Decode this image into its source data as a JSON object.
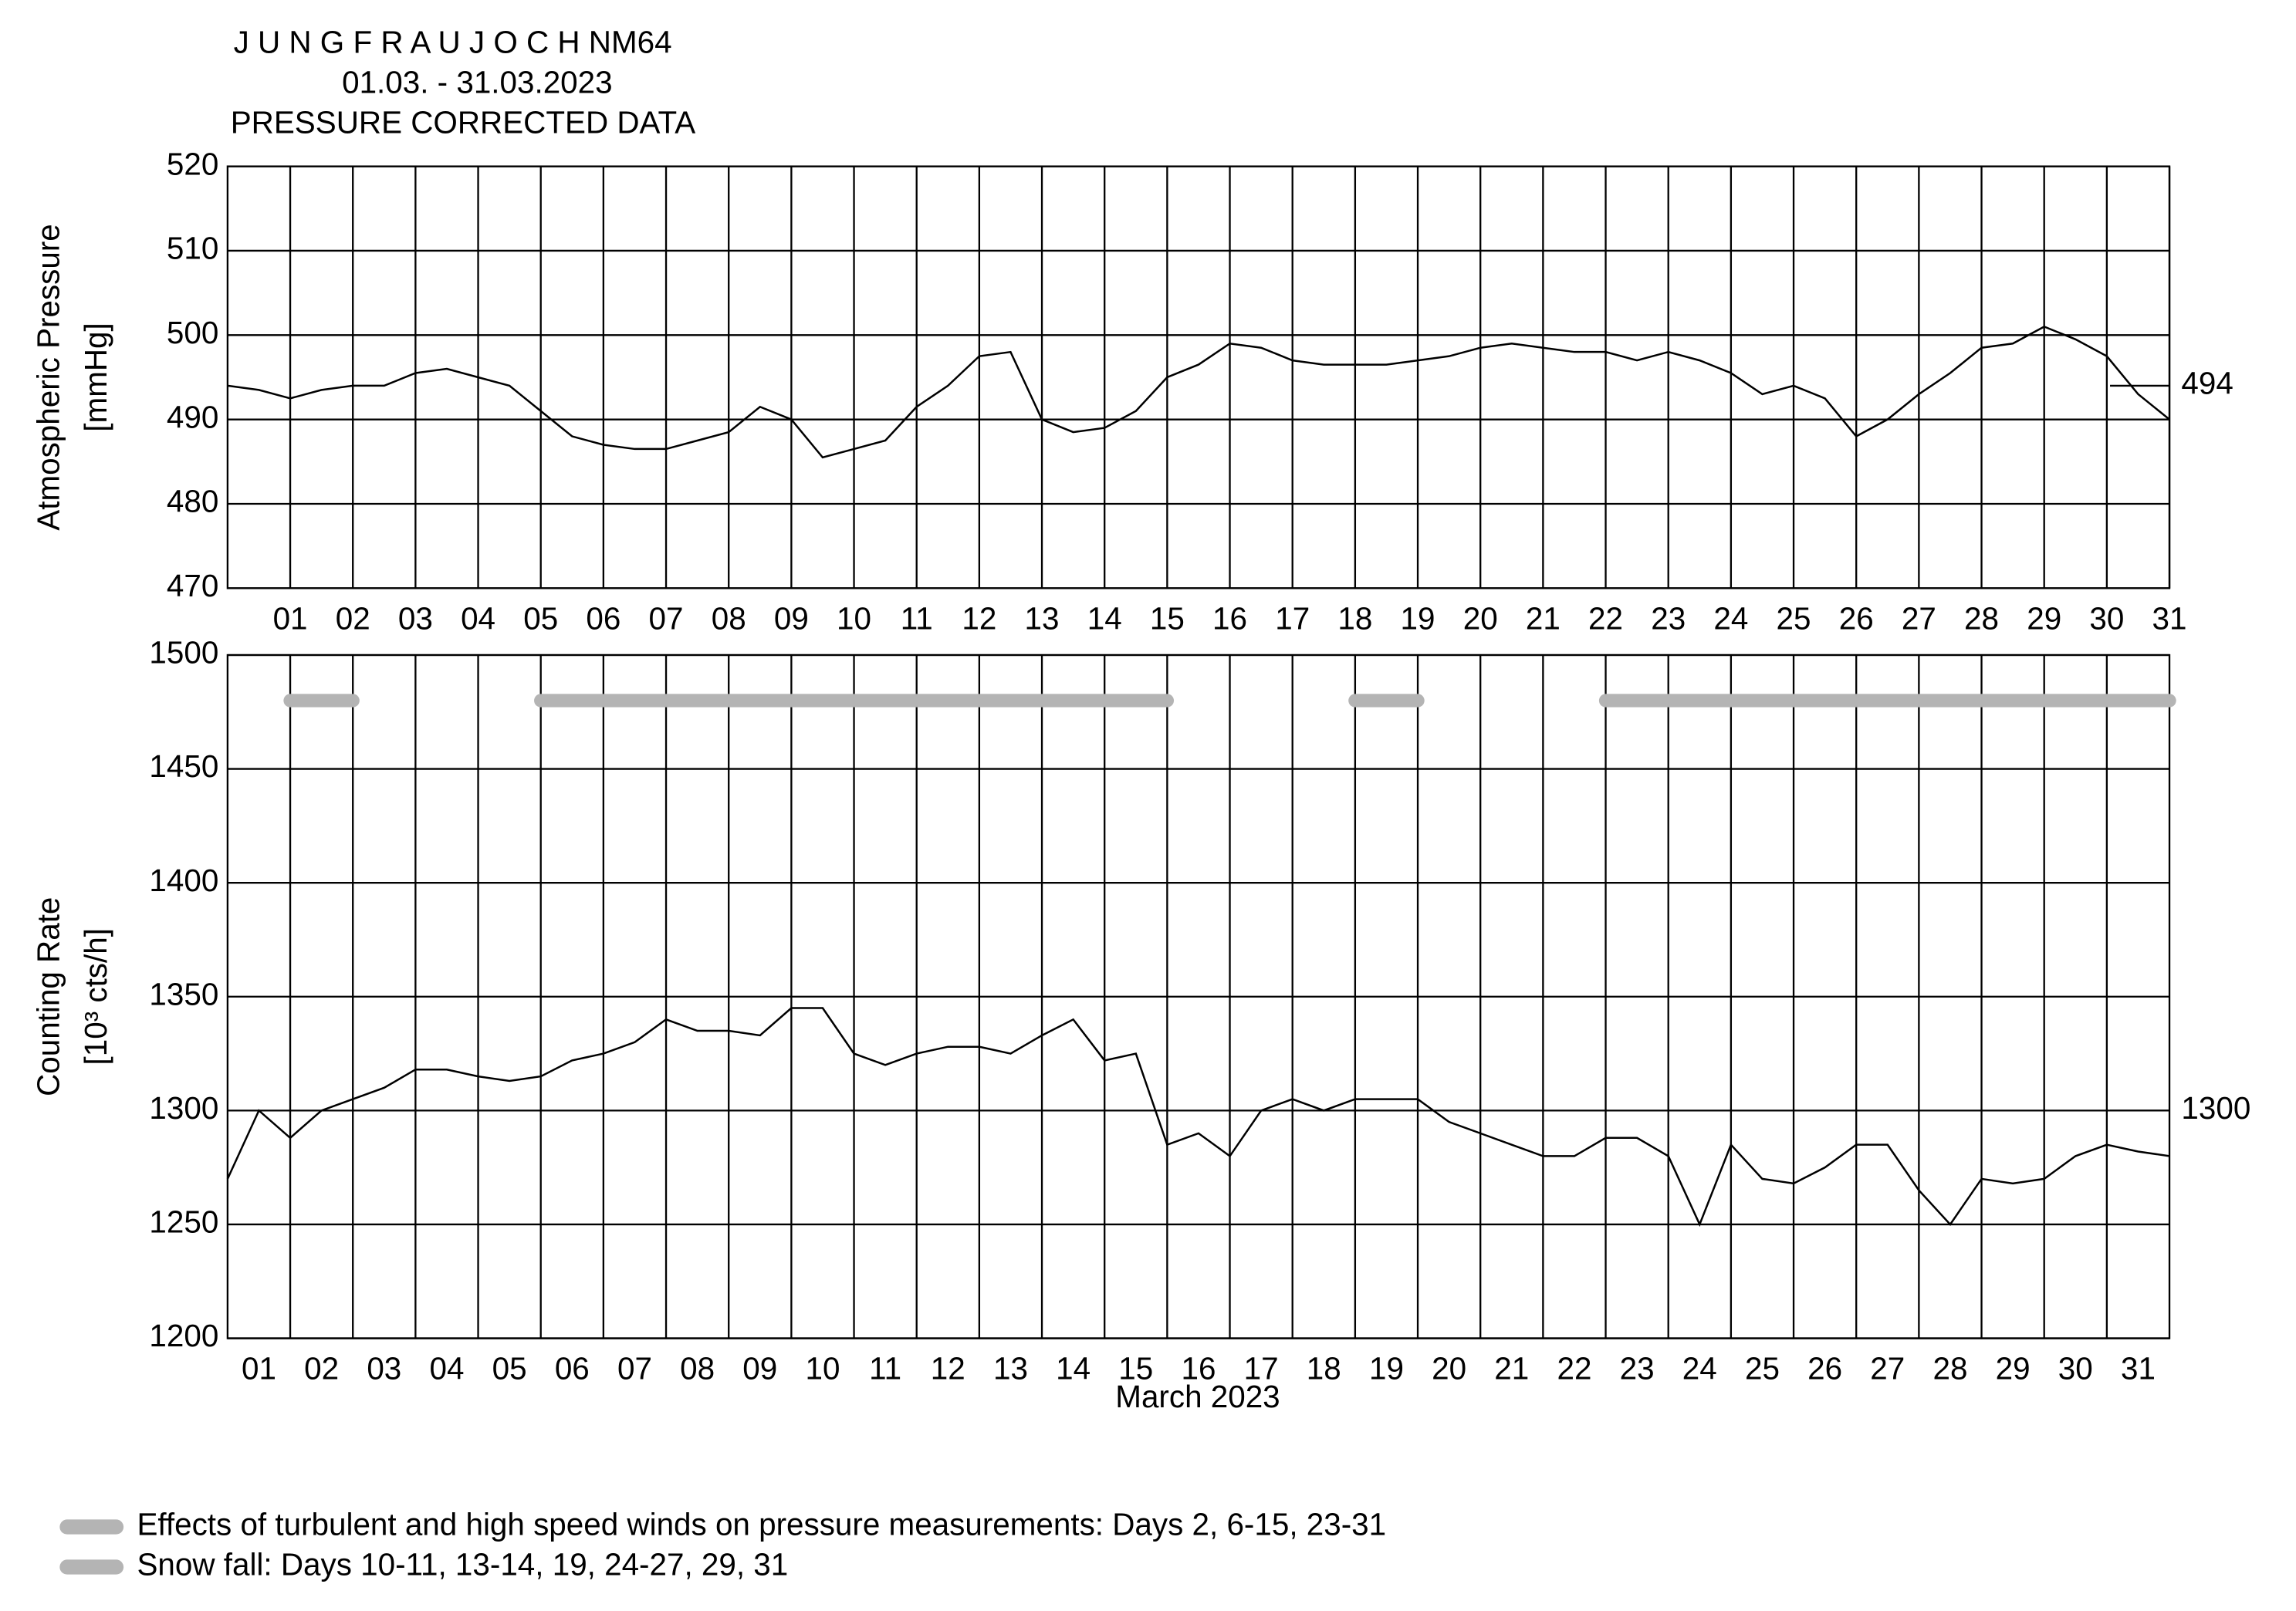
{
  "chart_data": [
    {
      "type": "line",
      "title": "J U N G F R A U J O C H  NM64",
      "subtitle": [
        "01.03. - 31.03.2023",
        "PRESSURE CORRECTED DATA"
      ],
      "ylabel": [
        "Atmospheric Pressure",
        "[mmHg]"
      ],
      "xlim": [
        0,
        31
      ],
      "ylim": [
        470,
        520
      ],
      "yticks": [
        470,
        480,
        490,
        500,
        510,
        520
      ],
      "xticks": [
        {
          "value": 1,
          "label": "01"
        },
        {
          "value": 2,
          "label": "02"
        },
        {
          "value": 3,
          "label": "03"
        },
        {
          "value": 4,
          "label": "04"
        },
        {
          "value": 5,
          "label": "05"
        },
        {
          "value": 6,
          "label": "06"
        },
        {
          "value": 7,
          "label": "07"
        },
        {
          "value": 8,
          "label": "08"
        },
        {
          "value": 9,
          "label": "09"
        },
        {
          "value": 10,
          "label": "10"
        },
        {
          "value": 11,
          "label": "11"
        },
        {
          "value": 12,
          "label": "12"
        },
        {
          "value": 13,
          "label": "13"
        },
        {
          "value": 14,
          "label": "14"
        },
        {
          "value": 15,
          "label": "15"
        },
        {
          "value": 16,
          "label": "16"
        },
        {
          "value": 17,
          "label": "17"
        },
        {
          "value": 18,
          "label": "18"
        },
        {
          "value": 19,
          "label": "19"
        },
        {
          "value": 20,
          "label": "20"
        },
        {
          "value": 21,
          "label": "21"
        },
        {
          "value": 22,
          "label": "22"
        },
        {
          "value": 23,
          "label": "23"
        },
        {
          "value": 24,
          "label": "24"
        },
        {
          "value": 25,
          "label": "25"
        },
        {
          "value": 26,
          "label": "26"
        },
        {
          "value": 27,
          "label": "27"
        },
        {
          "value": 28,
          "label": "28"
        },
        {
          "value": 29,
          "label": "29"
        },
        {
          "value": 30,
          "label": "30"
        },
        {
          "value": 31,
          "label": "31"
        }
      ],
      "grid": true,
      "reference": 494,
      "x": [
        0,
        0.5,
        1,
        1.5,
        2,
        2.5,
        3,
        3.5,
        4,
        4.5,
        5,
        5.5,
        6,
        6.5,
        7,
        7.5,
        8,
        8.5,
        9,
        9.5,
        10,
        10.5,
        11,
        11.5,
        12,
        12.5,
        13,
        13.5,
        14,
        14.5,
        15,
        15.5,
        16,
        16.5,
        17,
        17.5,
        18,
        18.5,
        19,
        19.5,
        20,
        20.5,
        21,
        21.5,
        22,
        22.5,
        23,
        23.5,
        24,
        24.5,
        25,
        25.5,
        26,
        26.5,
        27,
        27.5,
        28,
        28.5,
        29,
        29.5,
        30,
        30.5,
        31
      ],
      "series": [
        {
          "color": "#000000",
          "values": [
            494,
            493.5,
            492.5,
            493.5,
            494,
            494,
            495.5,
            496,
            495,
            494,
            491,
            488,
            487,
            486.5,
            486.5,
            487.5,
            488.5,
            491.5,
            490,
            485.5,
            486.5,
            487.5,
            491.5,
            494,
            497.5,
            498,
            490,
            488.5,
            489,
            491,
            495,
            496.5,
            499,
            498.5,
            497,
            496.5,
            496.5,
            496.5,
            497,
            497.5,
            498.5,
            499,
            498.5,
            498,
            498,
            497,
            498,
            497,
            495.5,
            493,
            494,
            492.5,
            488,
            490,
            493,
            495.5,
            498.5,
            499,
            501,
            499.5,
            497.5,
            493,
            490
          ]
        }
      ]
    },
    {
      "type": "line",
      "ylabel": [
        "Counting Rate",
        "[10³ cts/h]"
      ],
      "xlabel": "March 2023",
      "categories": [
        "01",
        "02",
        "03",
        "04",
        "05",
        "06",
        "07",
        "08",
        "09",
        "10",
        "11",
        "12",
        "13",
        "14",
        "15",
        "16",
        "17",
        "18",
        "19",
        "20",
        "21",
        "22",
        "23",
        "24",
        "25",
        "26",
        "27",
        "28",
        "29",
        "30",
        "31"
      ],
      "xlim": [
        0,
        31
      ],
      "ylim": [
        1200,
        1500
      ],
      "yticks": [
        1200,
        1250,
        1300,
        1350,
        1400,
        1450,
        1500
      ],
      "grid": true,
      "reference": 1300,
      "x": [
        0,
        0.5,
        1,
        1.5,
        2,
        2.5,
        3,
        3.5,
        4,
        4.5,
        5,
        5.5,
        6,
        6.5,
        7,
        7.5,
        8,
        8.5,
        9,
        9.5,
        10,
        10.5,
        11,
        11.5,
        12,
        12.5,
        13,
        13.5,
        14,
        14.5,
        15,
        15.5,
        16,
        16.5,
        17,
        17.5,
        18,
        18.5,
        19,
        19.5,
        20,
        20.5,
        21,
        21.5,
        22,
        22.5,
        23,
        23.5,
        24,
        24.5,
        25,
        25.5,
        26,
        26.5,
        27,
        27.5,
        28,
        28.5,
        29,
        29.5,
        30,
        30.5,
        31
      ],
      "series": [
        {
          "color": "#000000",
          "values": [
            1270,
            1300,
            1288,
            1300,
            1305,
            1310,
            1318,
            1318,
            1315,
            1313,
            1315,
            1322,
            1325,
            1330,
            1340,
            1335,
            1335,
            1333,
            1345,
            1345,
            1325,
            1320,
            1325,
            1328,
            1328,
            1325,
            1333,
            1340,
            1322,
            1325,
            1285,
            1290,
            1280,
            1300,
            1305,
            1300,
            1305,
            1305,
            1305,
            1295,
            1290,
            1285,
            1280,
            1280,
            1288,
            1288,
            1280,
            1250,
            1285,
            1270,
            1268,
            1275,
            1285,
            1285,
            1265,
            1250,
            1270,
            1268,
            1270,
            1280,
            1285,
            1282,
            1280
          ]
        }
      ],
      "wind_days": [
        [
          1,
          2
        ],
        [
          5,
          15
        ],
        [
          18,
          19
        ],
        [
          22,
          31
        ]
      ],
      "bar_value": 1480,
      "bar_color": "#b4b4b4",
      "legend": [
        "Effects of turbulent and high speed winds on pressure measurements: Days 2, 6-15, 23-31",
        "Snow fall: Days 10-11, 13-14, 19, 24-27, 29, 31"
      ]
    }
  ]
}
